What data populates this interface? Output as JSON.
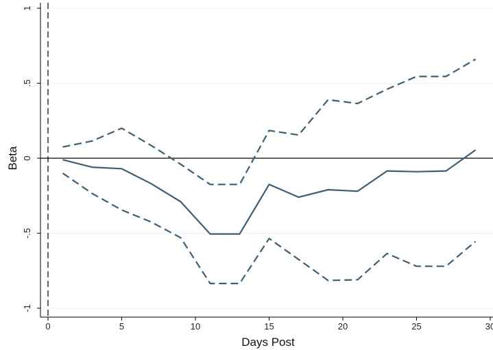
{
  "chart_data": {
    "type": "line",
    "xlabel": "Days Post",
    "ylabel": "Beta",
    "xlim": [
      0,
      30
    ],
    "ylim": [
      -1,
      1
    ],
    "xticks": [
      0,
      5,
      10,
      15,
      20,
      25,
      30
    ],
    "xtick_labels": [
      "0",
      "5",
      "10",
      "15",
      "20",
      "25",
      "30"
    ],
    "yticks": [
      -1,
      -0.5,
      0,
      0.5,
      1
    ],
    "ytick_labels": [
      "-1",
      "-.5",
      "0",
      ".5",
      "1"
    ],
    "grid": true,
    "reference_lines": [
      {
        "axis": "y",
        "value": 0,
        "style": "solid",
        "color": "#000000"
      },
      {
        "axis": "x",
        "value": 0,
        "style": "dashed",
        "color": "#000000"
      }
    ],
    "x": [
      1,
      3,
      5,
      7,
      9,
      11,
      13,
      15,
      17,
      19,
      21,
      23,
      25,
      27,
      29
    ],
    "series": [
      {
        "style": "solid",
        "color": "#3e5d73",
        "values": [
          -0.01,
          -0.06,
          -0.07,
          -0.17,
          -0.29,
          -0.505,
          -0.505,
          -0.175,
          -0.26,
          -0.21,
          -0.22,
          -0.085,
          -0.09,
          -0.085,
          0.055
        ]
      },
      {
        "style": "dashed",
        "color": "#3e5d73",
        "values": [
          0.075,
          0.115,
          0.2,
          0.085,
          -0.04,
          -0.175,
          -0.175,
          0.185,
          0.155,
          0.39,
          0.365,
          0.46,
          0.545,
          0.545,
          0.66
        ]
      },
      {
        "style": "dashed",
        "color": "#3e5d73",
        "values": [
          -0.1,
          -0.235,
          -0.345,
          -0.425,
          -0.53,
          -0.835,
          -0.835,
          -0.535,
          -0.675,
          -0.815,
          -0.81,
          -0.635,
          -0.72,
          -0.72,
          -0.555
        ]
      }
    ]
  }
}
